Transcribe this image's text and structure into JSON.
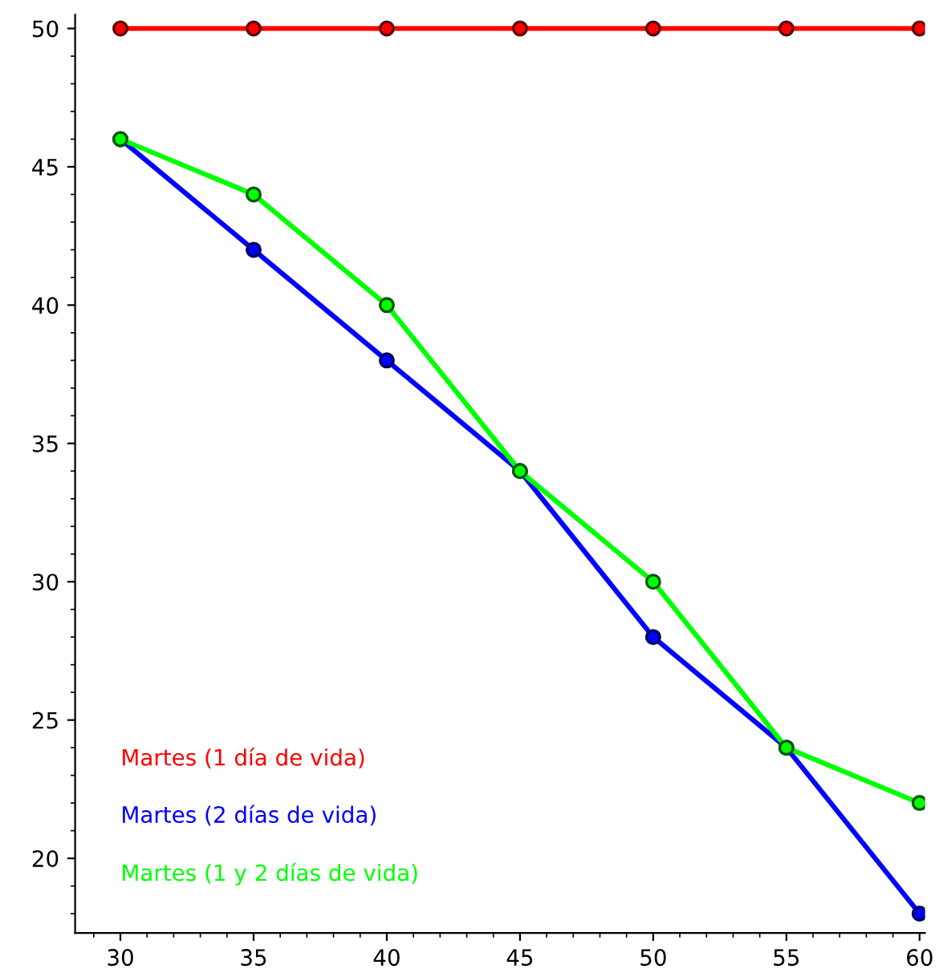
{
  "chart_data": {
    "type": "line",
    "x": [
      30,
      35,
      40,
      45,
      50,
      55,
      60
    ],
    "series": [
      {
        "name": "Martes (1 día de vida)",
        "color": "#ff0000",
        "values": [
          50,
          50,
          50,
          50,
          50,
          50,
          50
        ]
      },
      {
        "name": "Martes (2 días de vida)",
        "color": "#0000ff",
        "values": [
          46,
          42,
          38,
          34,
          28,
          24,
          18
        ]
      },
      {
        "name": "Martes (1 y 2 días de vida)",
        "color": "#00ff00",
        "values": [
          46,
          44,
          40,
          34,
          30,
          24,
          22
        ]
      }
    ],
    "xlim": [
      28.3,
      60.2
    ],
    "ylim": [
      17.3,
      50.5
    ],
    "xticks": [
      30,
      35,
      40,
      45,
      50,
      55,
      60
    ],
    "yticks": [
      20,
      25,
      30,
      35,
      40,
      45,
      50
    ],
    "marker": "circle",
    "line_style": "solid",
    "grid": false,
    "legend": "bottom left"
  }
}
